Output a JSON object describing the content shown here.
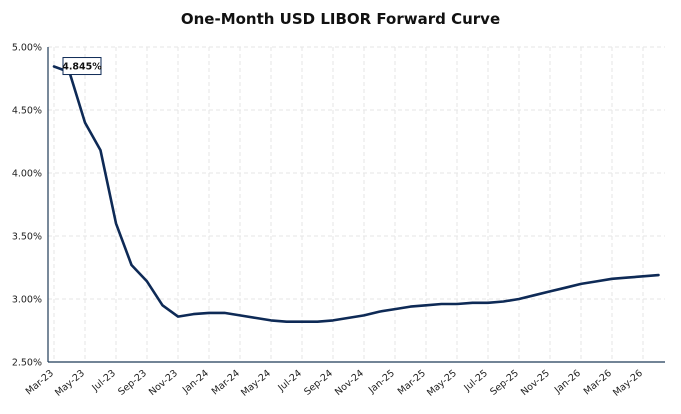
{
  "chart_data": {
    "type": "line",
    "title": "One-Month USD LIBOR Forward Curve",
    "xlabel": "",
    "ylabel": "",
    "ylim": [
      2.5,
      5.0
    ],
    "y_ticks": [
      "2.50%",
      "3.00%",
      "3.50%",
      "4.00%",
      "4.50%",
      "5.00%"
    ],
    "y_tick_values": [
      2.5,
      3.0,
      3.5,
      4.0,
      4.5,
      5.0
    ],
    "x_tick_labels": [
      "Mar-23",
      "May-23",
      "Jul-23",
      "Sep-23",
      "Nov-23",
      "Jan-24",
      "Mar-24",
      "May-24",
      "Jul-24",
      "Sep-24",
      "Nov-24",
      "Jan-25",
      "Mar-25",
      "May-25",
      "Jul-25",
      "Sep-25",
      "Nov-25",
      "Jan-26",
      "Mar-26",
      "May-26"
    ],
    "grid": true,
    "annotation": {
      "label": "4.845%",
      "value": 4.845
    },
    "series": [
      {
        "x": [
          "Mar-23",
          "Apr-23",
          "May-23",
          "Jun-23",
          "Jul-23",
          "Aug-23",
          "Sep-23",
          "Oct-23",
          "Nov-23",
          "Dec-23",
          "Jan-24",
          "Feb-24",
          "Mar-24",
          "Apr-24",
          "May-24",
          "Jun-24",
          "Jul-24",
          "Aug-24",
          "Sep-24",
          "Oct-24",
          "Nov-24",
          "Dec-24",
          "Jan-25",
          "Feb-25",
          "Mar-25",
          "Apr-25",
          "May-25",
          "Jun-25",
          "Jul-25",
          "Aug-25",
          "Sep-25",
          "Oct-25",
          "Nov-25",
          "Dec-25",
          "Jan-26",
          "Feb-26",
          "Mar-26",
          "Apr-26",
          "May-26",
          "Jun-26"
        ],
        "values": [
          4.845,
          4.8,
          4.4,
          4.18,
          3.6,
          3.27,
          3.14,
          2.95,
          2.86,
          2.88,
          2.89,
          2.89,
          2.87,
          2.85,
          2.83,
          2.82,
          2.82,
          2.82,
          2.83,
          2.85,
          2.87,
          2.9,
          2.92,
          2.94,
          2.95,
          2.96,
          2.96,
          2.97,
          2.97,
          2.98,
          3.0,
          3.03,
          3.06,
          3.09,
          3.12,
          3.14,
          3.16,
          3.17,
          3.18,
          3.19
        ]
      }
    ],
    "colors": {
      "line": "#0e2a56",
      "axis": "#1f3b57",
      "grid": "#e6e6e6"
    }
  }
}
